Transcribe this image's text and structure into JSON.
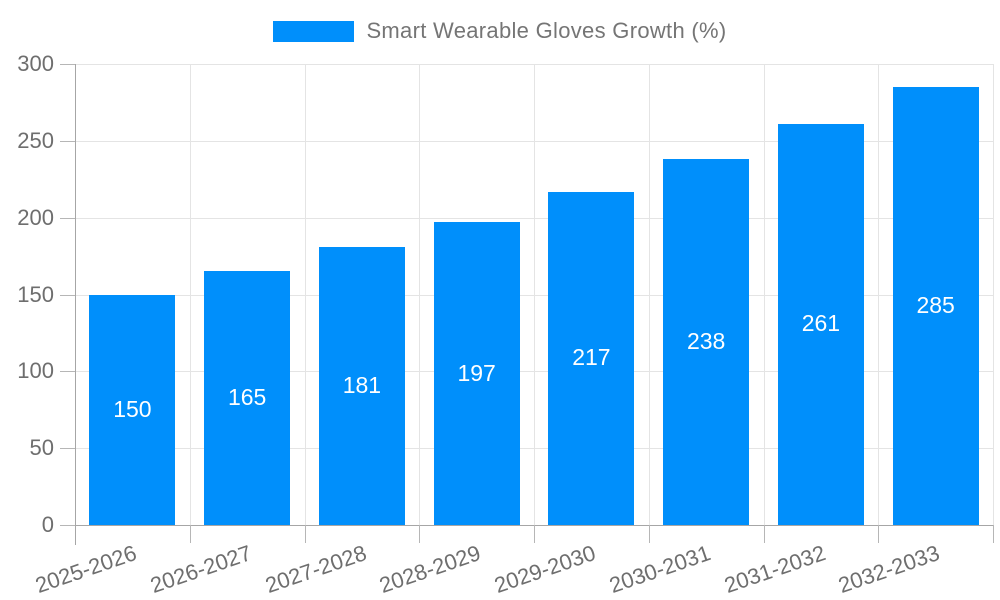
{
  "legend": {
    "label": "Smart Wearable Gloves Growth (%)",
    "swatch_color": "#008FFB"
  },
  "chart_data": {
    "type": "bar",
    "title": "",
    "xlabel": "",
    "ylabel": "",
    "categories": [
      "2025-2026",
      "2026-2027",
      "2027-2028",
      "2028-2029",
      "2029-2030",
      "2030-2031",
      "2031-2032",
      "2032-2033"
    ],
    "series": [
      {
        "name": "Smart Wearable Gloves Growth (%)",
        "values": [
          150,
          165,
          181,
          197,
          217,
          238,
          261,
          285
        ]
      }
    ],
    "data_labels": [
      "150",
      "165",
      "181",
      "197",
      "217",
      "238",
      "261",
      "285"
    ],
    "ylim": [
      0,
      300
    ],
    "yticks": [
      0,
      50,
      100,
      150,
      200,
      250,
      300
    ],
    "ytick_labels": [
      "0",
      "50",
      "100",
      "150",
      "200",
      "250",
      "300"
    ],
    "grid": true,
    "legend_position": "top",
    "bar_color": "#008FFB",
    "bar_label_color": "#ffffff",
    "axis_label_color": "#6e6e6e",
    "grid_color": "#e4e4e4",
    "axis_line_color": "#a6a6a6"
  }
}
